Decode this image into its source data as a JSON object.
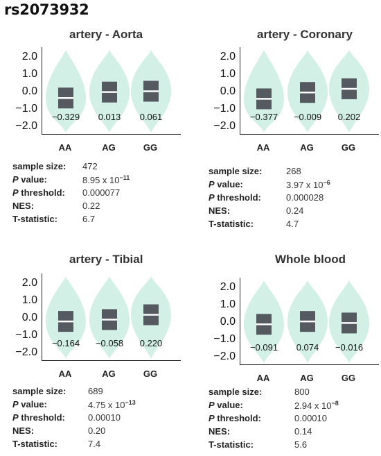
{
  "page_title": "rs2073932",
  "colors": {
    "violin": "#d3f0e6",
    "box": "#555a60",
    "median": "#ffffff",
    "axis": "#222222"
  },
  "stat_labels": {
    "sample_size": "sample size:",
    "p_value_p": "P",
    "p_value_rest": "value:",
    "p_threshold_p": "P",
    "p_threshold_rest": "threshold:",
    "nes": "NES:",
    "t_statistic": "T-statistic:"
  },
  "chart_data": [
    {
      "type": "violin",
      "title": "artery - Aorta",
      "categories": [
        "AA",
        "AG",
        "GG"
      ],
      "yticks": [
        "2.0",
        "1.0",
        "0.0",
        "−1.0",
        "−2.0"
      ],
      "ylim": [
        -2.4,
        2.6
      ],
      "medians": [
        -0.329,
        0.013,
        0.061
      ],
      "median_labels": [
        "−0.329",
        "0.013",
        "0.061"
      ],
      "stats": {
        "sample_size": "472",
        "p_value_base": "8.95 x 10",
        "p_value_exp": "−11",
        "p_threshold": "0.000077",
        "nes": "0.22",
        "t_statistic": "6.7"
      }
    },
    {
      "type": "violin",
      "title": "artery - Coronary",
      "categories": [
        "AA",
        "AG",
        "GG"
      ],
      "yticks": [
        "2.0",
        "1.0",
        "0.0",
        "−1.0",
        "−2.0"
      ],
      "ylim": [
        -2.4,
        2.6
      ],
      "medians": [
        -0.377,
        -0.009,
        0.202
      ],
      "median_labels": [
        "−0.377",
        "−0.009",
        "0.202"
      ],
      "stats": {
        "sample_size": "268",
        "p_value_base": "3.97 x 10",
        "p_value_exp": "−6",
        "p_threshold": "0.000028",
        "nes": "0.24",
        "t_statistic": "4.7"
      }
    },
    {
      "type": "violin",
      "title": "artery - Tibial",
      "categories": [
        "AA",
        "AG",
        "GG"
      ],
      "yticks": [
        "2.0",
        "1.0",
        "0.0",
        "−1.0",
        "−2.0"
      ],
      "ylim": [
        -2.4,
        2.6
      ],
      "medians": [
        -0.164,
        -0.058,
        0.22
      ],
      "median_labels": [
        "−0.164",
        "−0.058",
        "0.220"
      ],
      "stats": {
        "sample_size": "689",
        "p_value_base": "4.75 x 10",
        "p_value_exp": "−13",
        "p_threshold": "0.00010",
        "nes": "0.20",
        "t_statistic": "7.4"
      }
    },
    {
      "type": "violin",
      "title": "Whole blood",
      "categories": [
        "AA",
        "AG",
        "GG"
      ],
      "yticks": [
        "2.0",
        "1.0",
        "0.0",
        "−1.0",
        "−2.0"
      ],
      "ylim": [
        -2.4,
        2.6
      ],
      "medians": [
        -0.091,
        0.074,
        -0.016
      ],
      "median_labels": [
        "−0.091",
        "0.074",
        "−0.016"
      ],
      "stats": {
        "sample_size": "800",
        "p_value_base": "2.94 x 10",
        "p_value_exp": "−8",
        "p_threshold": "0.00010",
        "nes": "0.14",
        "t_statistic": "5.6"
      }
    }
  ]
}
